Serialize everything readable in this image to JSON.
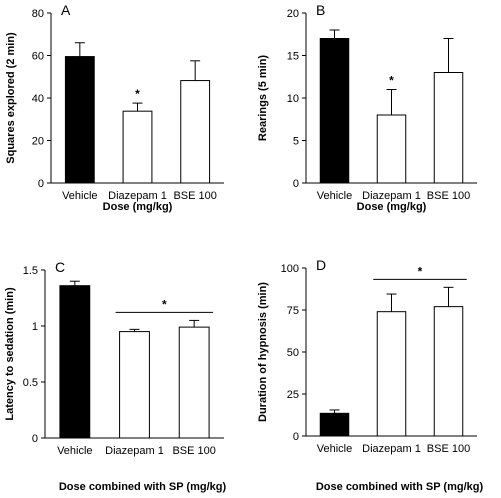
{
  "chart_data": [
    {
      "type": "bar",
      "panel": "A",
      "categories": [
        "Vehicle",
        "Diazepam 1",
        "BSE 100"
      ],
      "values": [
        59.5,
        33.8,
        48.2
      ],
      "errors": [
        6.5,
        3.8,
        9.3
      ],
      "fills": [
        "#000000",
        "#ffffff",
        "#ffffff"
      ],
      "significance": [
        {
          "type": "single",
          "index": 1,
          "label": "*"
        }
      ],
      "xlabel": "Dose (mg/kg)",
      "ylabel": "Squares explored (2 min)",
      "ylim": [
        0,
        80
      ],
      "yticks": [
        "0",
        "20",
        "40",
        "60",
        "80"
      ],
      "grid": false
    },
    {
      "type": "bar",
      "panel": "B",
      "categories": [
        "Vehicle",
        "Diazepam 1",
        "BSE 100"
      ],
      "values": [
        17.0,
        8.0,
        13.0
      ],
      "errors": [
        1.0,
        3.0,
        4.0
      ],
      "fills": [
        "#000000",
        "#ffffff",
        "#ffffff"
      ],
      "significance": [
        {
          "type": "single",
          "index": 1,
          "label": "*"
        }
      ],
      "xlabel": "Dose (mg/kg)",
      "ylabel": "Rearings (5 min)",
      "ylim": [
        0,
        20
      ],
      "yticks": [
        "0",
        "5",
        "10",
        "15",
        "20"
      ],
      "grid": false
    },
    {
      "type": "bar",
      "panel": "C",
      "categories": [
        "Vehicle",
        "Diazepam 1",
        "BSE 100"
      ],
      "values": [
        1.36,
        0.95,
        0.99
      ],
      "errors": [
        0.04,
        0.02,
        0.06
      ],
      "fills": [
        "#000000",
        "#ffffff",
        "#ffffff"
      ],
      "significance": [
        {
          "type": "bracket",
          "from": 1,
          "to": 2,
          "label": "*"
        }
      ],
      "xlabel": "Dose combined with SP (mg/kg)",
      "ylabel": "Latency to sedation (min)",
      "ylim": [
        0,
        1.5
      ],
      "yticks": [
        "0",
        "0.5",
        "1",
        "1.5"
      ],
      "grid": false
    },
    {
      "type": "bar",
      "panel": "D",
      "categories": [
        "Vehicle",
        "Diazepam 1",
        "BSE 100"
      ],
      "values": [
        13.5,
        74,
        77
      ],
      "errors": [
        2,
        10.5,
        11.5
      ],
      "fills": [
        "#000000",
        "#ffffff",
        "#ffffff"
      ],
      "significance": [
        {
          "type": "bracket",
          "from": 1,
          "to": 2,
          "label": "*"
        }
      ],
      "xlabel": "Dose combined with SP (mg/kg)",
      "ylabel": "Duration of hypnosis (min)",
      "ylim": [
        0,
        100
      ],
      "yticks": [
        "0",
        "25",
        "50",
        "75",
        "100"
      ],
      "grid": false
    }
  ]
}
